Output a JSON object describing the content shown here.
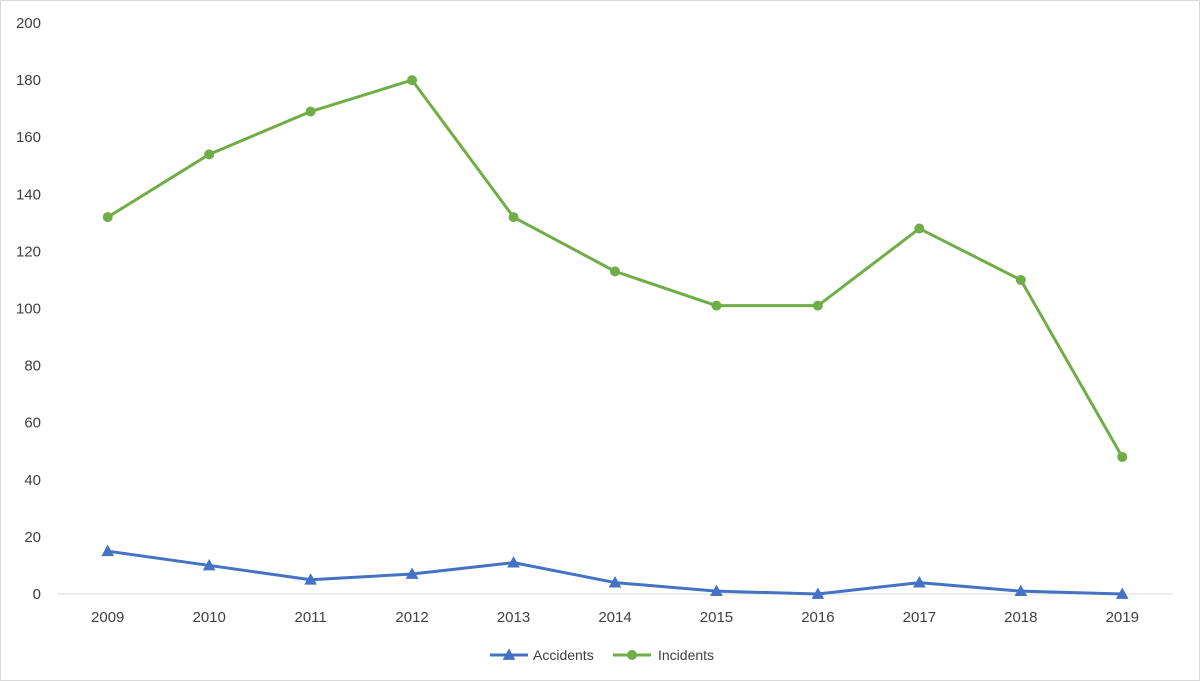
{
  "chart_data": {
    "type": "line",
    "title": "",
    "xlabel": "",
    "ylabel": "",
    "categories": [
      "2009",
      "2010",
      "2011",
      "2012",
      "2013",
      "2014",
      "2015",
      "2016",
      "2017",
      "2018",
      "2019"
    ],
    "ylim": [
      0,
      200
    ],
    "yticks": [
      "0",
      "20",
      "40",
      "60",
      "80",
      "100",
      "120",
      "140",
      "160",
      "180",
      "200"
    ],
    "grid": false,
    "legend_position": "bottom",
    "series": [
      {
        "name": "Accidents",
        "color": "#4472c4",
        "marker": "triangle",
        "values": [
          15,
          10,
          5,
          7,
          11,
          4,
          1,
          0,
          4,
          1,
          0
        ]
      },
      {
        "name": "Incidents",
        "color": "#70ad47",
        "marker": "circle",
        "values": [
          132,
          154,
          169,
          180,
          132,
          113,
          101,
          101,
          128,
          110,
          48
        ]
      }
    ]
  }
}
